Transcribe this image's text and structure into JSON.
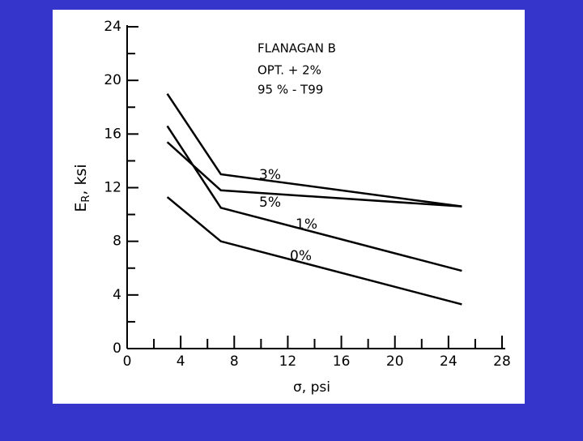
{
  "chart_data": {
    "type": "line",
    "annotation": [
      "FLANAGAN B",
      "OPT. + 2%",
      "95 % - T99"
    ],
    "xlabel": "σ, psi",
    "ylabel": [
      "E",
      "R",
      ", ksi"
    ],
    "xlim": [
      0,
      28
    ],
    "xticks": [
      0,
      4,
      8,
      12,
      16,
      20,
      24,
      28
    ],
    "ylim": [
      0,
      24
    ],
    "yticks": [
      0,
      4,
      8,
      12,
      16,
      20,
      24
    ],
    "x": [
      3,
      7,
      25
    ],
    "series": [
      {
        "name": "3%",
        "color": "#000000",
        "values": [
          19,
          13,
          10.6
        ]
      },
      {
        "name": "5%",
        "color": "#000000",
        "values": [
          15.4,
          11.8,
          10.6
        ]
      },
      {
        "name": "1%",
        "color": "#000000",
        "values": [
          16.6,
          10.5,
          5.8
        ]
      },
      {
        "name": "0%",
        "color": "#000000",
        "values": [
          11.3,
          8,
          3.3
        ]
      }
    ]
  }
}
